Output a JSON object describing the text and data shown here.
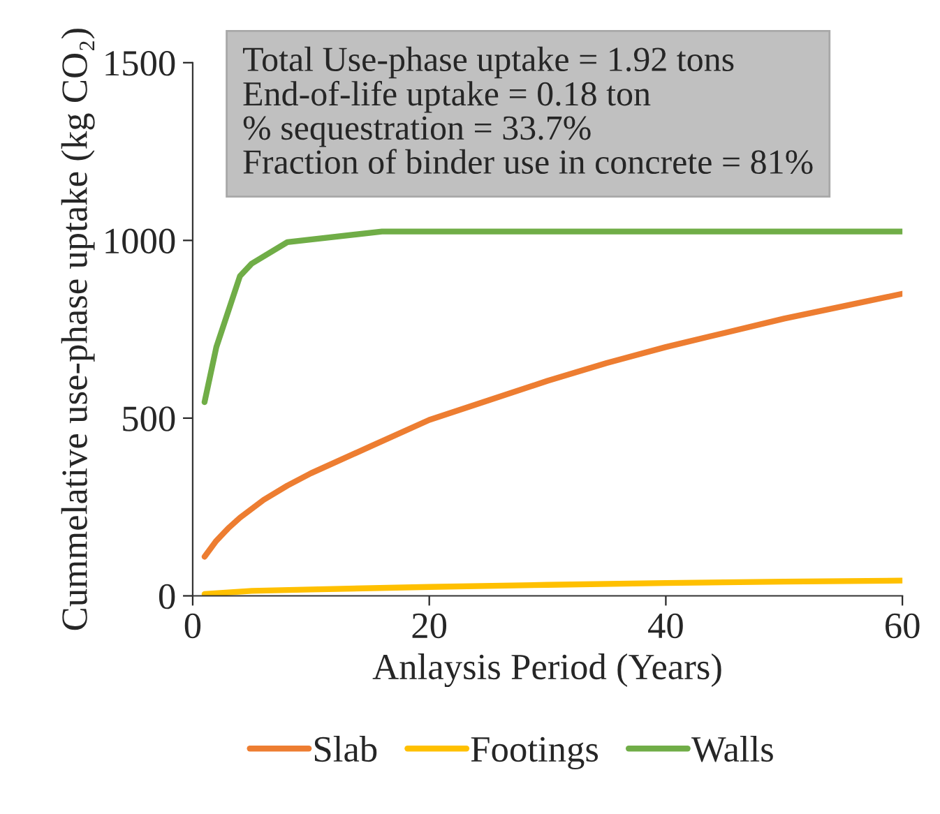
{
  "chart_data": {
    "type": "line",
    "xlabel": "Anlaysis Period (Years)",
    "ylabel": "Cummelative use-phase uptake (kg CO₂)",
    "annotations": [
      "Total Use-phase uptake = 1.92 tons\nEnd-of-life uptake = 0.18 ton\n% sequestration = 33.7%\nFraction of binder use in concrete = 81%"
    ],
    "xlim": [
      0,
      60
    ],
    "xticks": [
      0,
      20,
      40,
      60
    ],
    "ylim": [
      0,
      1500
    ],
    "yticks": [
      0,
      500,
      1000,
      1500
    ],
    "grid": false,
    "legend": "bottom",
    "marker": "none",
    "line_style": "solid",
    "series": [
      {
        "name": "Slab",
        "color": "#ed7d31",
        "x": [
          1,
          2,
          3,
          4,
          6,
          8,
          10,
          15,
          20,
          25,
          30,
          35,
          40,
          45,
          50,
          55,
          60
        ],
        "values": [
          110,
          155,
          190,
          220,
          270,
          310,
          345,
          420,
          495,
          550,
          605,
          655,
          700,
          740,
          780,
          815,
          850
        ]
      },
      {
        "name": "Footings",
        "color": "#ffc000",
        "x": [
          1,
          5,
          10,
          20,
          30,
          40,
          50,
          60
        ],
        "values": [
          5,
          14,
          18,
          25,
          31,
          36,
          40,
          43
        ]
      },
      {
        "name": "Walls",
        "color": "#70ad47",
        "x": [
          1,
          2,
          3,
          4,
          5,
          8,
          16,
          60
        ],
        "values": [
          545,
          700,
          800,
          900,
          935,
          995,
          1025,
          1025
        ]
      }
    ]
  }
}
